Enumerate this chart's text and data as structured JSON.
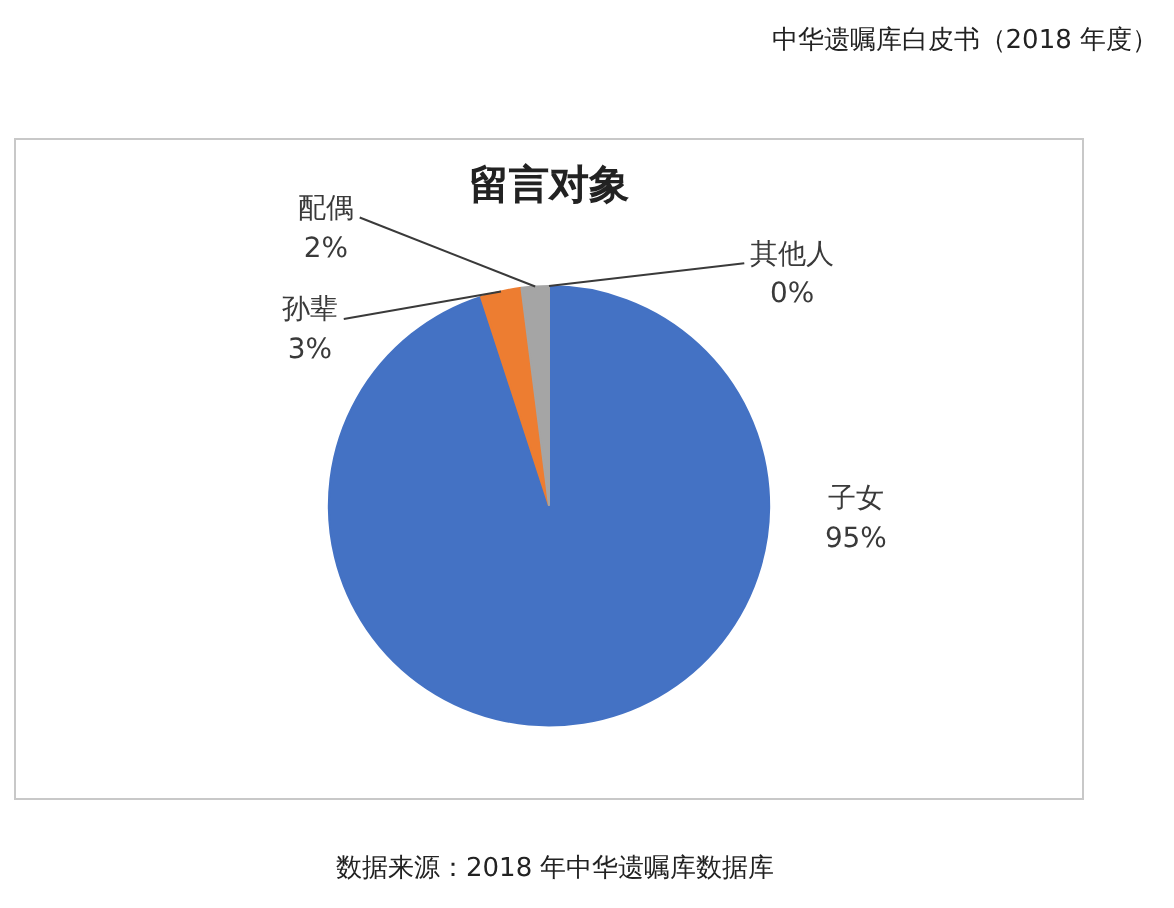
{
  "chart_data": {
    "type": "pie",
    "title": "留言对象",
    "categories": [
      "子女",
      "孙辈",
      "配偶",
      "其他人"
    ],
    "values": [
      95,
      3,
      2,
      0
    ],
    "colors": [
      "#4472c4",
      "#ed7d31",
      "#a5a5a5",
      "#ffc000"
    ],
    "value_labels": [
      "95%",
      "3%",
      "2%",
      "0%"
    ],
    "annotations": [
      "中华遗嘱库白皮书（2018 年度）",
      "数据来源：2018 年中华遗嘱库数据库"
    ]
  }
}
